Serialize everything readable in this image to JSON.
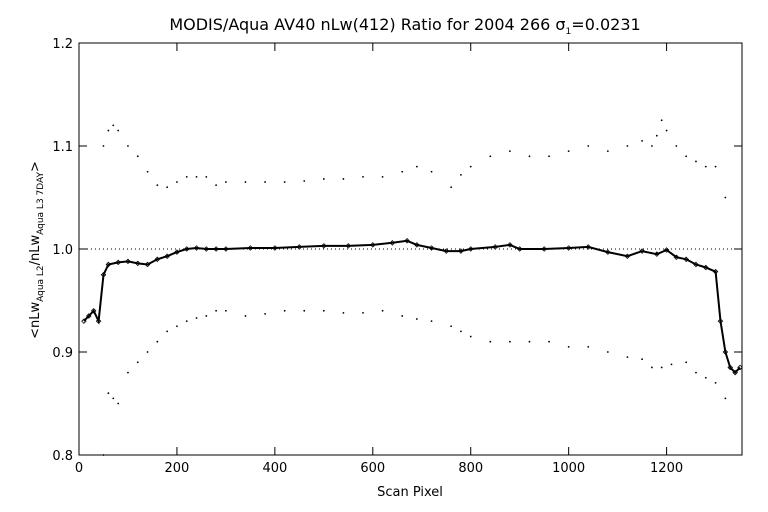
{
  "chart_data": {
    "type": "scatter",
    "title": "MODIS/Aqua AV40 nLw(412) Ratio for 2004 266 σ",
    "title_sigma_sub": "1",
    "title_suffix": "=0.0231",
    "xlabel": "Scan Pixel",
    "ylabel": {
      "prefix": "<nLw",
      "sub1": "Aqua L2",
      "mid": "/nLw",
      "sub2": "Aqua L3 7DAY",
      "suffix": ">"
    },
    "xlim": [
      0,
      1354
    ],
    "ylim": [
      0.8,
      1.2
    ],
    "xticks": [
      0,
      200,
      400,
      600,
      800,
      1000,
      1200
    ],
    "yticks": [
      0.8,
      0.9,
      1.0,
      1.1,
      1.2
    ],
    "xtick_labels": [
      "0",
      "200",
      "400",
      "600",
      "800",
      "1000",
      "1200"
    ],
    "ytick_labels": [
      "0.8",
      "0.9",
      "1.0",
      "1.1",
      "1.2"
    ],
    "reference_line": 1.0,
    "grid": false,
    "legend": "none",
    "series": [
      {
        "role": "mean_ratio",
        "marker": "diamond",
        "x": [
          10,
          20,
          30,
          40,
          50,
          60,
          80,
          100,
          120,
          140,
          160,
          180,
          200,
          220,
          240,
          260,
          280,
          300,
          350,
          400,
          450,
          500,
          550,
          600,
          640,
          670,
          690,
          720,
          750,
          780,
          800,
          850,
          880,
          900,
          950,
          1000,
          1040,
          1080,
          1120,
          1150,
          1180,
          1200,
          1220,
          1240,
          1260,
          1280,
          1300,
          1310,
          1320,
          1330,
          1340,
          1350
        ],
        "y": [
          0.93,
          0.935,
          0.94,
          0.93,
          0.975,
          0.985,
          0.987,
          0.988,
          0.986,
          0.985,
          0.99,
          0.993,
          0.997,
          1.0,
          1.001,
          1.0,
          1.0,
          1.0,
          1.001,
          1.001,
          1.002,
          1.003,
          1.003,
          1.004,
          1.006,
          1.008,
          1.004,
          1.001,
          0.998,
          0.998,
          1.0,
          1.002,
          1.004,
          1.0,
          1.0,
          1.001,
          1.002,
          0.997,
          0.993,
          0.998,
          0.995,
          0.999,
          0.992,
          0.99,
          0.985,
          0.982,
          0.978,
          0.93,
          0.9,
          0.885,
          0.88,
          0.885
        ]
      },
      {
        "role": "upper_bound",
        "marker": "dot",
        "x": [
          50,
          60,
          70,
          80,
          100,
          120,
          140,
          160,
          180,
          200,
          220,
          240,
          260,
          280,
          300,
          340,
          380,
          420,
          460,
          500,
          540,
          580,
          620,
          660,
          690,
          720,
          760,
          780,
          800,
          840,
          880,
          920,
          960,
          1000,
          1040,
          1080,
          1120,
          1150,
          1170,
          1180,
          1190,
          1200,
          1220,
          1240,
          1260,
          1280,
          1300,
          1320
        ],
        "y": [
          1.1,
          1.115,
          1.12,
          1.115,
          1.1,
          1.09,
          1.075,
          1.062,
          1.06,
          1.065,
          1.07,
          1.07,
          1.07,
          1.062,
          1.065,
          1.065,
          1.065,
          1.065,
          1.066,
          1.068,
          1.068,
          1.07,
          1.07,
          1.075,
          1.08,
          1.075,
          1.06,
          1.072,
          1.08,
          1.09,
          1.095,
          1.09,
          1.09,
          1.095,
          1.1,
          1.095,
          1.1,
          1.105,
          1.1,
          1.11,
          1.125,
          1.115,
          1.1,
          1.09,
          1.085,
          1.08,
          1.08,
          1.05
        ]
      },
      {
        "role": "lower_bound",
        "marker": "dot",
        "x": [
          50,
          60,
          70,
          80,
          100,
          120,
          140,
          160,
          180,
          200,
          220,
          240,
          260,
          280,
          300,
          340,
          380,
          420,
          460,
          500,
          540,
          580,
          620,
          660,
          690,
          720,
          760,
          780,
          800,
          840,
          880,
          920,
          960,
          1000,
          1040,
          1080,
          1120,
          1150,
          1170,
          1190,
          1210,
          1240,
          1260,
          1280,
          1300,
          1320
        ],
        "y": [
          0.8,
          0.86,
          0.855,
          0.85,
          0.88,
          0.89,
          0.9,
          0.91,
          0.92,
          0.925,
          0.93,
          0.933,
          0.935,
          0.94,
          0.94,
          0.935,
          0.937,
          0.94,
          0.94,
          0.94,
          0.938,
          0.938,
          0.94,
          0.935,
          0.932,
          0.93,
          0.925,
          0.92,
          0.915,
          0.91,
          0.91,
          0.91,
          0.91,
          0.905,
          0.905,
          0.9,
          0.895,
          0.893,
          0.885,
          0.885,
          0.888,
          0.89,
          0.88,
          0.875,
          0.87,
          0.855
        ]
      }
    ]
  }
}
